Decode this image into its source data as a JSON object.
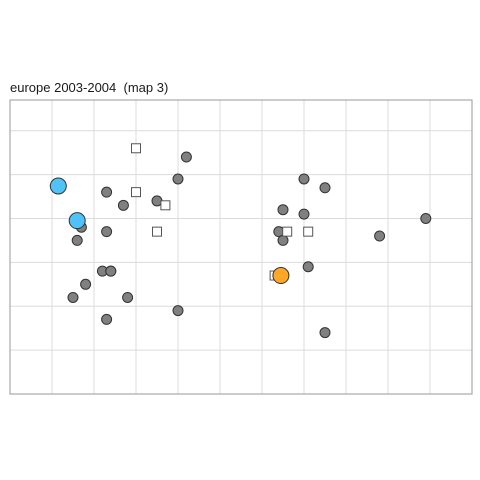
{
  "chart_data": {
    "type": "scatter",
    "title": "europe 2003-2004  (map 3)",
    "xlabel": "",
    "ylabel": "",
    "xlim": [
      0,
      11
    ],
    "ylim": [
      0,
      6.7
    ],
    "grid": true,
    "legend": "none",
    "colors": {
      "gray_point": "#808080",
      "highlight_blue": "#4fc3f7",
      "highlight_orange": "#ffa726",
      "square_fill": "#ffffff",
      "outline": "#333333",
      "grid": "#dcdcdc",
      "frame": "#999999"
    },
    "series": [
      {
        "marker": "circle",
        "color": "#808080",
        "points": [
          [
            4.2,
            5.4
          ],
          [
            4.0,
            4.9
          ],
          [
            2.3,
            4.6
          ],
          [
            2.7,
            4.3
          ],
          [
            3.5,
            4.4
          ],
          [
            1.7,
            3.8
          ],
          [
            2.3,
            3.7
          ],
          [
            1.6,
            3.5
          ],
          [
            2.2,
            2.8
          ],
          [
            2.4,
            2.8
          ],
          [
            2.4,
            2.8
          ],
          [
            1.8,
            2.5
          ],
          [
            1.5,
            2.2
          ],
          [
            2.8,
            2.2
          ],
          [
            2.3,
            1.7
          ],
          [
            4.0,
            1.9
          ],
          [
            7.0,
            4.9
          ],
          [
            7.5,
            4.7
          ],
          [
            6.5,
            4.2
          ],
          [
            7.0,
            4.1
          ],
          [
            6.4,
            3.7
          ],
          [
            6.5,
            3.5
          ],
          [
            7.1,
            2.9
          ],
          [
            8.8,
            3.6
          ],
          [
            9.9,
            4.0
          ],
          [
            7.5,
            1.4
          ]
        ]
      },
      {
        "marker": "square",
        "color": "#ffffff",
        "points": [
          [
            3.0,
            5.6
          ],
          [
            3.0,
            4.6
          ],
          [
            3.7,
            4.3
          ],
          [
            3.5,
            3.7
          ],
          [
            6.6,
            3.7
          ],
          [
            7.1,
            3.7
          ],
          [
            6.3,
            2.7
          ]
        ]
      },
      {
        "marker": "circle-large",
        "color": "#4fc3f7",
        "points": [
          [
            1.15,
            4.74
          ],
          [
            1.6,
            3.95
          ]
        ]
      },
      {
        "marker": "circle-large",
        "color": "#ffa726",
        "points": [
          [
            6.45,
            2.7
          ]
        ]
      }
    ]
  }
}
